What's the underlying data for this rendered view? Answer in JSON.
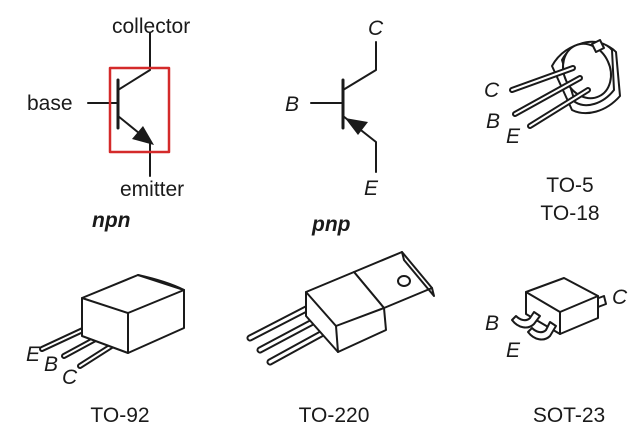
{
  "symbols": {
    "npn": {
      "type_label": "npn",
      "collector_label": "collector",
      "base_label": "base",
      "emitter_label": "emitter",
      "highlight_color": "#d42a2a"
    },
    "pnp": {
      "type_label": "pnp",
      "collector_label": "C",
      "base_label": "B",
      "emitter_label": "E"
    }
  },
  "packages": [
    {
      "name": "TO-5",
      "alt_name": "TO-18",
      "pins": [
        "C",
        "B",
        "E"
      ]
    },
    {
      "name": "TO-92",
      "pins": [
        "E",
        "B",
        "C"
      ]
    },
    {
      "name": "TO-220"
    },
    {
      "name": "SOT-23",
      "pins": [
        "B",
        "C",
        "E"
      ]
    }
  ],
  "colors": {
    "ink": "#1a1a1a",
    "body_fill": "#ffffff",
    "accent": "#d42a2a"
  }
}
